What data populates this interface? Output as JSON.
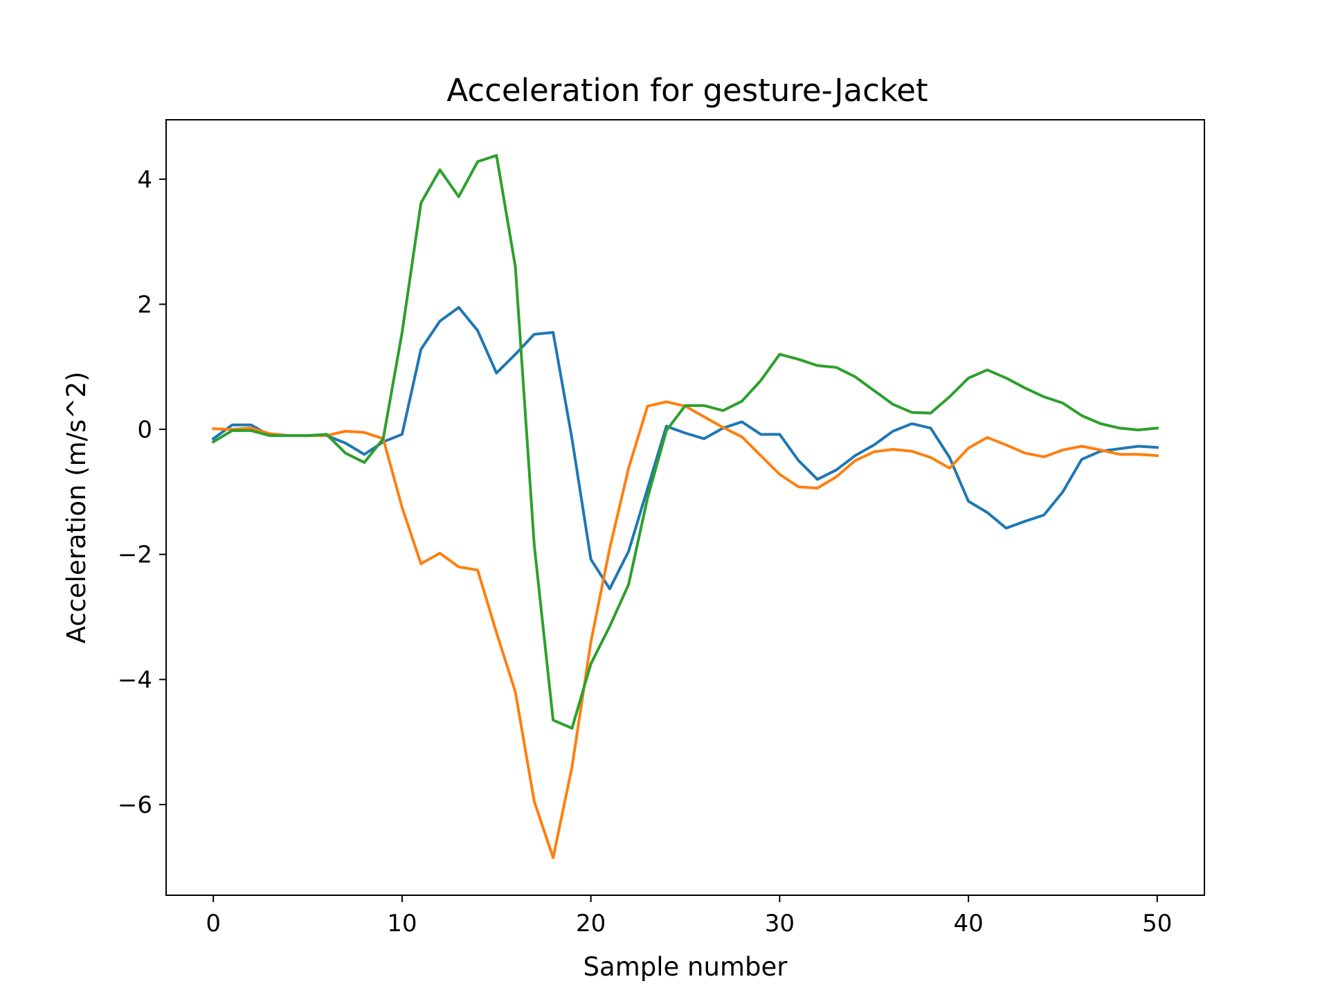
{
  "chart_data": {
    "type": "line",
    "title": "Acceleration for gesture-Jacket",
    "xlabel": "Sample number",
    "ylabel": "Acceleration (m/s^2)",
    "xlim": [
      -2.5,
      52.5
    ],
    "ylim": [
      -7.45,
      4.95
    ],
    "xticks": [
      0,
      10,
      20,
      30,
      40,
      50
    ],
    "yticks": [
      -6,
      -4,
      -2,
      0,
      2,
      4
    ],
    "xtick_labels": [
      "0",
      "10",
      "20",
      "30",
      "40",
      "50"
    ],
    "ytick_labels": [
      "−6",
      "−4",
      "−2",
      "0",
      "2",
      "4"
    ],
    "grid": false,
    "legend": "none",
    "x": [
      0,
      1,
      2,
      3,
      4,
      5,
      6,
      7,
      8,
      9,
      10,
      11,
      12,
      13,
      14,
      15,
      16,
      17,
      18,
      19,
      20,
      21,
      22,
      23,
      24,
      25,
      26,
      27,
      28,
      29,
      30,
      31,
      32,
      33,
      34,
      35,
      36,
      37,
      38,
      39,
      40,
      41,
      42,
      43,
      44,
      45,
      46,
      47,
      48,
      49,
      50
    ],
    "series": [
      {
        "color": "#1f77b4",
        "values": [
          -0.15,
          0.07,
          0.07,
          -0.1,
          -0.1,
          -0.1,
          -0.1,
          -0.22,
          -0.4,
          -0.2,
          -0.08,
          1.28,
          1.73,
          1.95,
          1.58,
          0.9,
          1.2,
          1.52,
          1.55,
          -0.15,
          -2.08,
          -2.55,
          -1.95,
          -0.95,
          0.05,
          -0.06,
          -0.15,
          0.02,
          0.12,
          -0.08,
          -0.08,
          -0.5,
          -0.8,
          -0.65,
          -0.42,
          -0.25,
          -0.03,
          0.09,
          0.02,
          -0.45,
          -1.15,
          -1.33,
          -1.58,
          -1.47,
          -1.37,
          -1.0,
          -0.48,
          -0.35,
          -0.31,
          -0.27,
          -0.29
        ]
      },
      {
        "color": "#ff7f0e",
        "values": [
          0.01,
          0.0,
          0.02,
          -0.07,
          -0.1,
          -0.1,
          -0.1,
          -0.03,
          -0.05,
          -0.15,
          -1.25,
          -2.15,
          -1.98,
          -2.2,
          -2.25,
          -3.25,
          -4.2,
          -5.95,
          -6.85,
          -5.4,
          -3.4,
          -1.9,
          -0.62,
          0.37,
          0.44,
          0.37,
          0.2,
          0.03,
          -0.12,
          -0.42,
          -0.72,
          -0.92,
          -0.94,
          -0.76,
          -0.5,
          -0.36,
          -0.32,
          -0.35,
          -0.45,
          -0.62,
          -0.3,
          -0.13,
          -0.25,
          -0.38,
          -0.44,
          -0.33,
          -0.27,
          -0.33,
          -0.4,
          -0.4,
          -0.42
        ]
      },
      {
        "color": "#2ca02c",
        "values": [
          -0.2,
          -0.02,
          -0.02,
          -0.1,
          -0.1,
          -0.1,
          -0.08,
          -0.38,
          -0.53,
          -0.15,
          1.55,
          3.62,
          4.15,
          3.72,
          4.28,
          4.38,
          2.6,
          -1.85,
          -4.65,
          -4.78,
          -3.75,
          -3.15,
          -2.48,
          -1.1,
          -0.02,
          0.38,
          0.38,
          0.3,
          0.45,
          0.78,
          1.2,
          1.12,
          1.02,
          0.99,
          0.84,
          0.62,
          0.4,
          0.27,
          0.26,
          0.52,
          0.82,
          0.95,
          0.82,
          0.66,
          0.52,
          0.42,
          0.22,
          0.09,
          0.02,
          -0.01,
          0.02
        ]
      }
    ]
  }
}
